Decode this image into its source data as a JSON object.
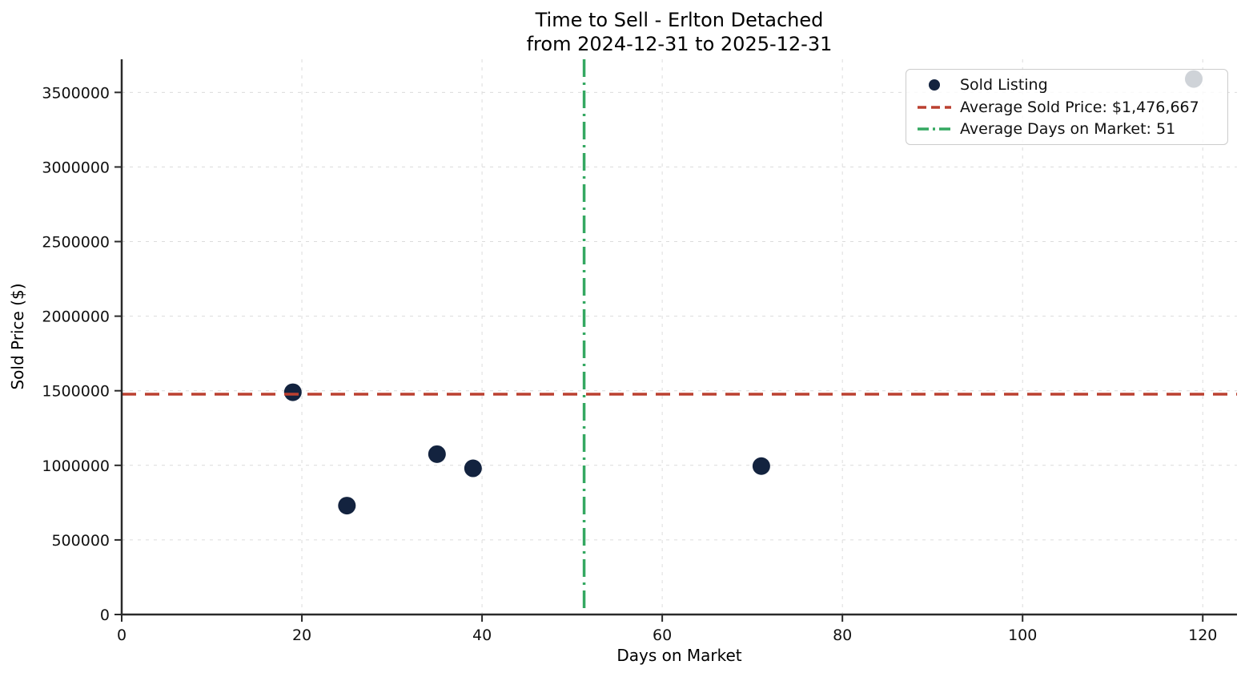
{
  "chart_data": {
    "type": "scatter",
    "title": "Time to Sell - Erlton Detached from 2024-12-31 to 2025-12-31",
    "title_line1": "Time to Sell - Erlton Detached",
    "title_line2": "from 2024-12-31 to 2025-12-31",
    "xlabel": "Days on Market",
    "ylabel": "Sold Price ($)",
    "xlim": [
      0,
      123.8
    ],
    "ylim": [
      0,
      3722000
    ],
    "x_ticks": [
      0,
      20,
      40,
      60,
      80,
      100,
      120
    ],
    "y_ticks": [
      0,
      500000,
      1000000,
      1500000,
      2000000,
      2500000,
      3000000,
      3500000
    ],
    "grid": true,
    "points": [
      {
        "days_on_market": 19,
        "sold_price": 1490000
      },
      {
        "days_on_market": 25,
        "sold_price": 730000
      },
      {
        "days_on_market": 35,
        "sold_price": 1075000
      },
      {
        "days_on_market": 39,
        "sold_price": 980000
      },
      {
        "days_on_market": 71,
        "sold_price": 995000
      },
      {
        "days_on_market": 119,
        "sold_price": 3590000
      }
    ],
    "average_sold_price": {
      "value": 1476667,
      "label": "Average Sold Price: $1,476,667",
      "style": "dashed"
    },
    "average_days_on_market": {
      "value": 51.33,
      "label": "Average Days on Market: 51",
      "style": "dashdot"
    },
    "legend": {
      "position": "upper right",
      "entries": [
        {
          "label": "Sold Listing",
          "marker": "circle"
        },
        {
          "label": "Average Sold Price: $1,476,667",
          "marker": "dashed-line"
        },
        {
          "label": "Average Days on Market: 51",
          "marker": "dashdot-line"
        }
      ]
    },
    "colors": {
      "point": "#13233F",
      "avg_price_line": "#BB4030",
      "avg_days_line": "#34A861",
      "grid": "#DCDCDC",
      "spine": "#2A2A2A",
      "text": "#111111",
      "legend_border": "#CCCCCC"
    }
  }
}
